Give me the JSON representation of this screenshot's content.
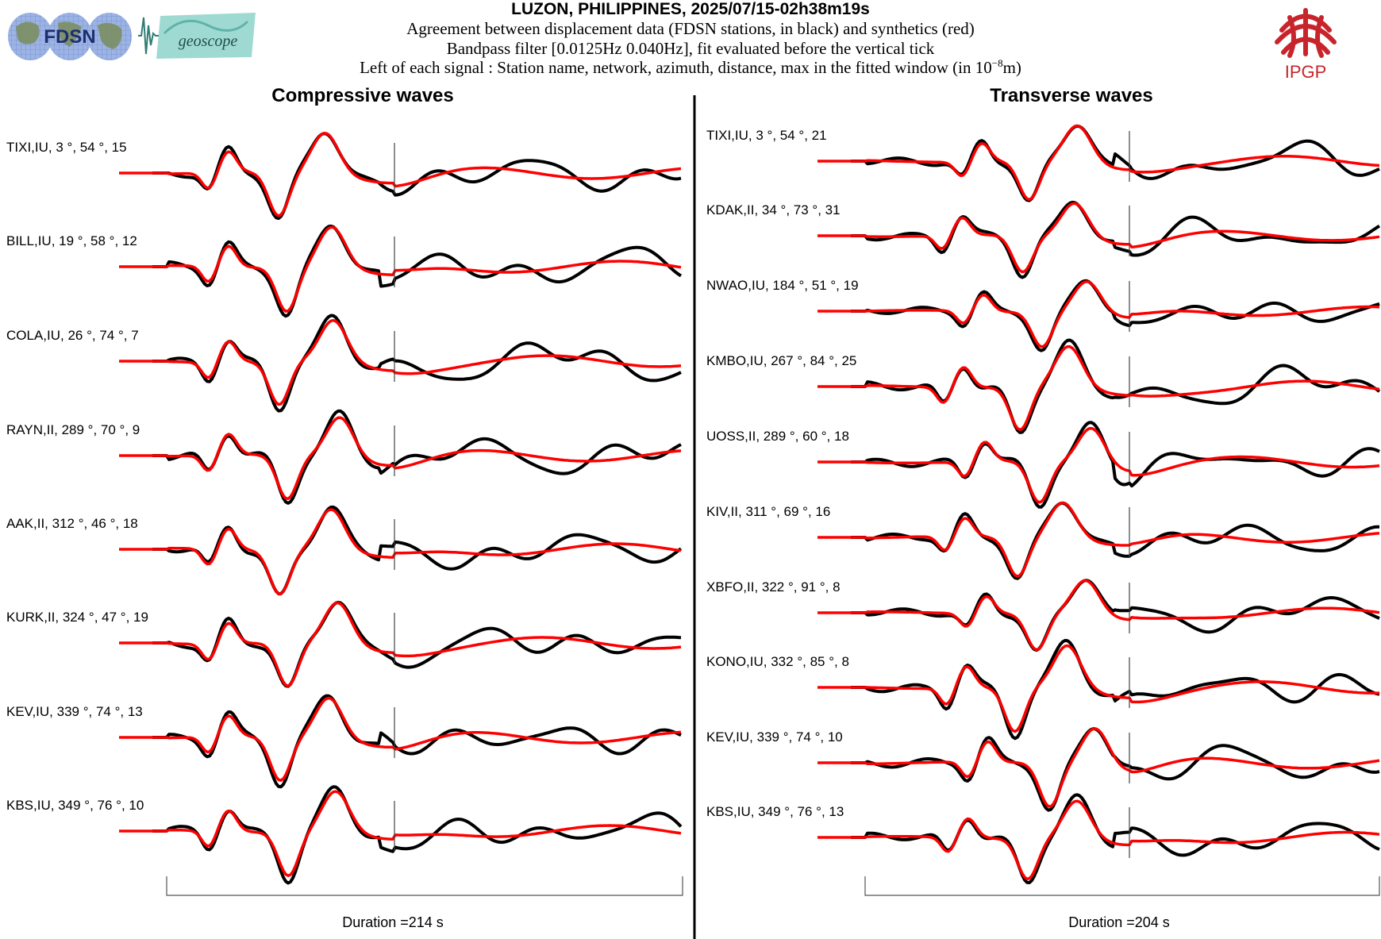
{
  "header": {
    "title": "LUZON, PHILIPPINES, 2025/07/15-02h38m19s",
    "line1": "Agreement between displacement data (FDSN stations, in black) and synthetics (red)",
    "line2": "Bandpass filter [0.0125Hz 0.040Hz], fit evaluated before the vertical tick",
    "line3_prefix": "Left of each signal : Station name, network, azimuth, distance, max in the fitted window (in 10",
    "line3_sup": "−8",
    "line3_suffix": "m)"
  },
  "logos": {
    "fdsn": "FDSN",
    "geoscope": "geoscope",
    "ipgp": "IPGP"
  },
  "colors": {
    "data": "#000000",
    "synthetic": "#ff0000",
    "ipgp": "#c8242b",
    "fdsn_blue": "#3a64b6",
    "geoscope_teal": "#7fc9c0"
  },
  "chart_data": [
    {
      "type": "line",
      "title": "Compressive waves",
      "duration_label": "Duration =214 s",
      "series_legend": [
        "displacement data (black)",
        "synthetics (red)"
      ],
      "traces": [
        {
          "label": "TIXI,IU, 3 °, 54 °, 15",
          "station": "TIXI",
          "network": "IU",
          "azimuth": 3,
          "distance": 54,
          "max": 15
        },
        {
          "label": "BILL,IU, 19 °, 58 °, 12",
          "station": "BILL",
          "network": "IU",
          "azimuth": 19,
          "distance": 58,
          "max": 12
        },
        {
          "label": "COLA,IU, 26 °, 74 °, 7",
          "station": "COLA",
          "network": "IU",
          "azimuth": 26,
          "distance": 74,
          "max": 7
        },
        {
          "label": "RAYN,II, 289 °, 70 °, 9",
          "station": "RAYN",
          "network": "II",
          "azimuth": 289,
          "distance": 70,
          "max": 9
        },
        {
          "label": "AAK,II, 312 °, 46 °, 18",
          "station": "AAK",
          "network": "II",
          "azimuth": 312,
          "distance": 46,
          "max": 18
        },
        {
          "label": "KURK,II, 324 °, 47 °, 19",
          "station": "KURK",
          "network": "II",
          "azimuth": 324,
          "distance": 47,
          "max": 19
        },
        {
          "label": "KEV,IU, 339 °, 74 °, 13",
          "station": "KEV",
          "network": "IU",
          "azimuth": 339,
          "distance": 74,
          "max": 13
        },
        {
          "label": "KBS,IU, 349 °, 76 °, 10",
          "station": "KBS",
          "network": "IU",
          "azimuth": 349,
          "distance": 76,
          "max": 10
        }
      ]
    },
    {
      "type": "line",
      "title": "Transverse waves",
      "duration_label": "Duration =204 s",
      "series_legend": [
        "displacement data (black)",
        "synthetics (red)"
      ],
      "traces": [
        {
          "label": "TIXI,IU, 3 °, 54 °, 21",
          "station": "TIXI",
          "network": "IU",
          "azimuth": 3,
          "distance": 54,
          "max": 21
        },
        {
          "label": "KDAK,II, 34 °, 73 °, 31",
          "station": "KDAK",
          "network": "II",
          "azimuth": 34,
          "distance": 73,
          "max": 31
        },
        {
          "label": "NWAO,IU, 184 °, 51 °, 19",
          "station": "NWAO",
          "network": "IU",
          "azimuth": 184,
          "distance": 51,
          "max": 19
        },
        {
          "label": "KMBO,IU, 267 °, 84 °, 25",
          "station": "KMBO",
          "network": "IU",
          "azimuth": 267,
          "distance": 84,
          "max": 25
        },
        {
          "label": "UOSS,II, 289 °, 60 °, 18",
          "station": "UOSS",
          "network": "II",
          "azimuth": 289,
          "distance": 60,
          "max": 18
        },
        {
          "label": "KIV,II, 311 °, 69 °, 16",
          "station": "KIV",
          "network": "II",
          "azimuth": 311,
          "distance": 69,
          "max": 16
        },
        {
          "label": "XBFO,II, 322 °, 91 °, 8",
          "station": "XBFO",
          "network": "II",
          "azimuth": 322,
          "distance": 91,
          "max": 8
        },
        {
          "label": "KONO,IU, 332 °, 85 °, 8",
          "station": "KONO",
          "network": "IU",
          "azimuth": 332,
          "distance": 85,
          "max": 8
        },
        {
          "label": "KEV,IU, 339 °, 74 °, 10",
          "station": "KEV",
          "network": "IU",
          "azimuth": 339,
          "distance": 74,
          "max": 10
        },
        {
          "label": "KBS,IU, 349 °, 76 °, 13",
          "station": "KBS",
          "network": "IU",
          "azimuth": 349,
          "distance": 76,
          "max": 13
        }
      ]
    }
  ]
}
